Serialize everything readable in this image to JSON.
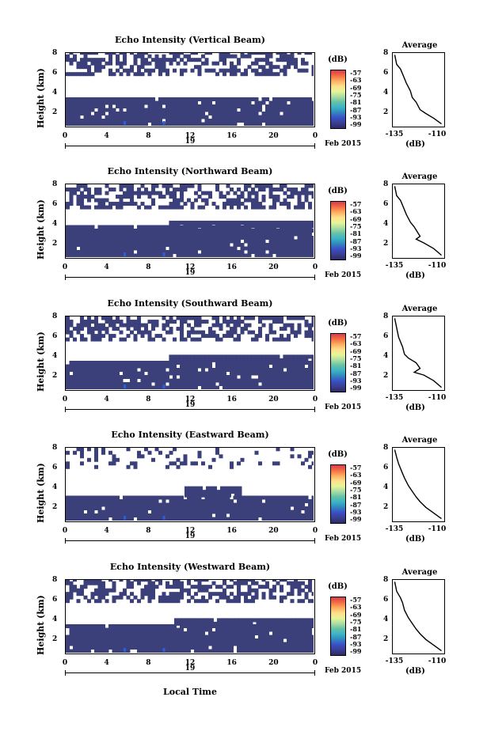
{
  "figure": {
    "xaxis_label": "Local Time",
    "day_label": "19",
    "month_label": "Feb 2015",
    "ylabel": "Height (km)",
    "colorbar_unit": "(dB)",
    "colorbar_ticks": [
      "-57",
      "-63",
      "-69",
      "-75",
      "-81",
      "-87",
      "-93",
      "-99"
    ],
    "x_ticks": [
      "0",
      "4",
      "8",
      "12",
      "16",
      "20",
      "0"
    ],
    "y_ticks": [
      "8",
      "6",
      "4",
      "2"
    ],
    "avg_title": "Average",
    "avg_unit": "(dB)",
    "avg_x_ticks": [
      "-135",
      "-110"
    ],
    "avg_y_ticks": [
      "8",
      "6",
      "4",
      "2"
    ],
    "colors": {
      "dominant": "#3b3f7a",
      "background": "#ffffff",
      "weak_peak": "#2b5fd9"
    }
  },
  "chart_data": [
    {
      "type": "heatmap",
      "title": "Echo Intensity (Vertical Beam)",
      "xlabel": "Local Time",
      "ylabel": "Height (km)",
      "xlim": [
        0,
        24
      ],
      "ylim": [
        0.5,
        8.2
      ],
      "clim": [
        -99,
        -57
      ],
      "colorbar_label": "(dB)",
      "echo_regions": [
        {
          "hours": [
            0,
            24
          ],
          "height_km": [
            0.5,
            3.4
          ],
          "fill": "dense"
        },
        {
          "hours": [
            0,
            24
          ],
          "height_km": [
            5.8,
            8.2
          ],
          "fill": "patchy"
        }
      ]
    },
    {
      "type": "line",
      "title": "Average",
      "xlabel": "(dB)",
      "xlim": [
        -136,
        -110
      ],
      "ylim": [
        0.5,
        8.2
      ],
      "series": [
        {
          "x": [
            -135,
            -134,
            -132,
            -131,
            -129,
            -127,
            -126,
            -124,
            -122,
            -119,
            -115,
            -111
          ],
          "y": [
            8,
            7,
            6.5,
            6,
            5,
            4.2,
            3.5,
            3,
            2.2,
            1.8,
            1.3,
            0.7
          ]
        }
      ]
    },
    {
      "type": "heatmap",
      "title": "Echo Intensity (Northward Beam)",
      "xlabel": "Local Time",
      "ylabel": "Height (km)",
      "xlim": [
        0,
        24
      ],
      "ylim": [
        0.5,
        8.2
      ],
      "clim": [
        -99,
        -57
      ],
      "colorbar_label": "(dB)",
      "echo_regions": [
        {
          "hours": [
            0,
            24
          ],
          "height_km": [
            0.5,
            3.6
          ],
          "fill": "dense"
        },
        {
          "hours": [
            10,
            24
          ],
          "height_km": [
            3.6,
            4.0
          ],
          "fill": "dense"
        },
        {
          "hours": [
            0,
            24
          ],
          "height_km": [
            5.6,
            8.2
          ],
          "fill": "patchy"
        }
      ]
    },
    {
      "type": "line",
      "title": "Average",
      "xlabel": "(dB)",
      "xlim": [
        -136,
        -110
      ],
      "ylim": [
        0.5,
        8.2
      ],
      "series": [
        {
          "x": [
            -135,
            -134,
            -132,
            -131,
            -129,
            -127,
            -125,
            -122,
            -124,
            -120,
            -115,
            -111
          ],
          "y": [
            8,
            7,
            6.5,
            6,
            5,
            4.2,
            3.7,
            2.7,
            2.4,
            2.0,
            1.4,
            0.7
          ]
        }
      ]
    },
    {
      "type": "heatmap",
      "title": "Echo Intensity (Southward Beam)",
      "xlabel": "Local Time",
      "ylabel": "Height (km)",
      "xlim": [
        0,
        24
      ],
      "ylim": [
        0.5,
        8.2
      ],
      "clim": [
        -99,
        -57
      ],
      "colorbar_label": "(dB)",
      "echo_regions": [
        {
          "hours": [
            0,
            24
          ],
          "height_km": [
            0.5,
            3.4
          ],
          "fill": "dense"
        },
        {
          "hours": [
            10,
            24
          ],
          "height_km": [
            3.4,
            4.0
          ],
          "fill": "dense"
        },
        {
          "hours": [
            0,
            24
          ],
          "height_km": [
            5.6,
            8.2
          ],
          "fill": "patchy"
        }
      ]
    },
    {
      "type": "line",
      "title": "Average",
      "xlabel": "(dB)",
      "xlim": [
        -136,
        -110
      ],
      "ylim": [
        0.5,
        8.2
      ],
      "series": [
        {
          "x": [
            -135,
            -134,
            -133,
            -131,
            -130,
            -128,
            -124,
            -122,
            -125,
            -120,
            -115,
            -111
          ],
          "y": [
            8,
            7,
            6,
            5,
            4.2,
            3.8,
            3.3,
            2.7,
            2.3,
            2.0,
            1.4,
            0.7
          ]
        }
      ]
    },
    {
      "type": "heatmap",
      "title": "Echo Intensity (Eastward Beam)",
      "xlabel": "Local Time",
      "ylabel": "Height (km)",
      "xlim": [
        0,
        24
      ],
      "ylim": [
        0.5,
        8.2
      ],
      "clim": [
        -99,
        -57
      ],
      "colorbar_label": "(dB)",
      "echo_regions": [
        {
          "hours": [
            0,
            24
          ],
          "height_km": [
            0.5,
            3.0
          ],
          "fill": "dense"
        },
        {
          "hours": [
            11.5,
            17
          ],
          "height_km": [
            3.0,
            4.0
          ],
          "fill": "dense"
        },
        {
          "hours": [
            0,
            24
          ],
          "height_km": [
            6.0,
            8.2
          ],
          "fill": "sparse"
        }
      ]
    },
    {
      "type": "line",
      "title": "Average",
      "xlabel": "(dB)",
      "xlim": [
        -136,
        -110
      ],
      "ylim": [
        0.5,
        8.2
      ],
      "series": [
        {
          "x": [
            -135,
            -134,
            -133,
            -131,
            -130,
            -128,
            -126,
            -124,
            -122,
            -119,
            -115,
            -111
          ],
          "y": [
            8,
            7.2,
            6.5,
            5.5,
            5,
            4.2,
            3.6,
            3,
            2.5,
            1.9,
            1.3,
            0.7
          ]
        }
      ]
    },
    {
      "type": "heatmap",
      "title": "Echo Intensity (Westward Beam)",
      "xlabel": "Local Time",
      "ylabel": "Height (km)",
      "xlim": [
        0,
        24
      ],
      "ylim": [
        0.5,
        8.2
      ],
      "clim": [
        -99,
        -57
      ],
      "colorbar_label": "(dB)",
      "echo_regions": [
        {
          "hours": [
            0,
            24
          ],
          "height_km": [
            0.5,
            3.4
          ],
          "fill": "dense"
        },
        {
          "hours": [
            10.5,
            24
          ],
          "height_km": [
            3.4,
            3.9
          ],
          "fill": "dense"
        },
        {
          "hours": [
            0,
            24
          ],
          "height_km": [
            5.8,
            8.2
          ],
          "fill": "patchy"
        }
      ]
    },
    {
      "type": "line",
      "title": "Average",
      "xlabel": "(dB)",
      "xlim": [
        -136,
        -110
      ],
      "ylim": [
        0.5,
        8.2
      ],
      "series": [
        {
          "x": [
            -135,
            -134,
            -132,
            -131,
            -130,
            -128,
            -126,
            -124,
            -122,
            -119,
            -115,
            -111
          ],
          "y": [
            8,
            7,
            6.3,
            5.8,
            5,
            4.2,
            3.6,
            3,
            2.5,
            1.9,
            1.3,
            0.7
          ]
        }
      ]
    }
  ]
}
